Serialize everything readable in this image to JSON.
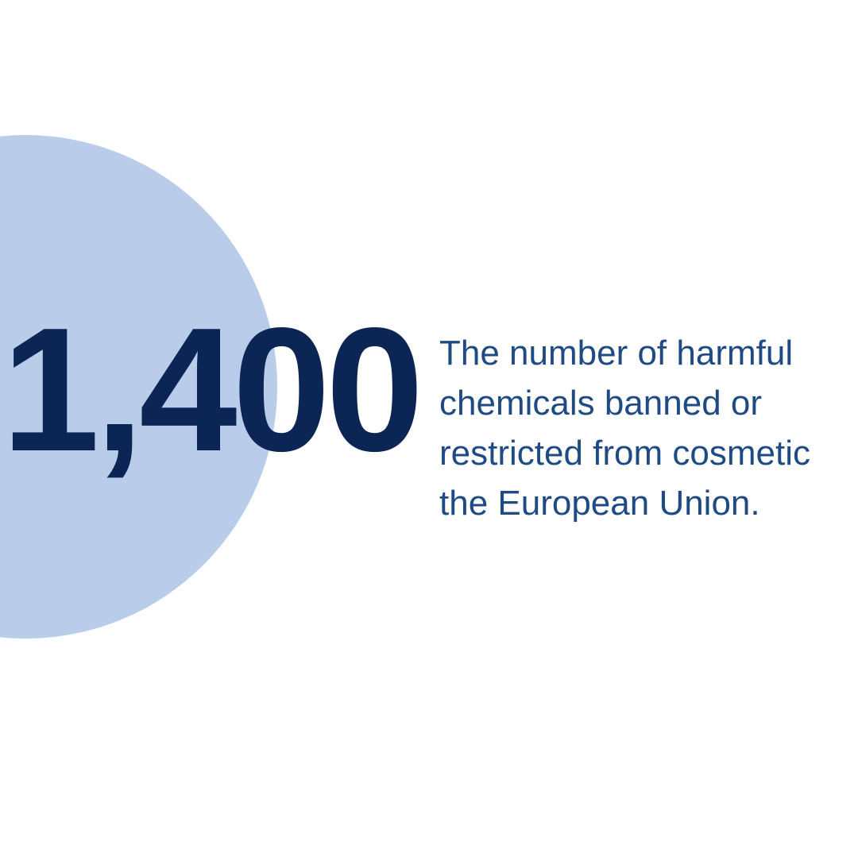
{
  "stat": {
    "number": "1,400",
    "caption_lines": [
      "The number of harmful",
      "chemicals banned or",
      "restricted from cosmetic",
      "the European Union."
    ]
  },
  "colors": {
    "background": "#ffffff",
    "circle": "#b9cdea",
    "number": "#0b2554",
    "caption": "#1f4b85"
  }
}
